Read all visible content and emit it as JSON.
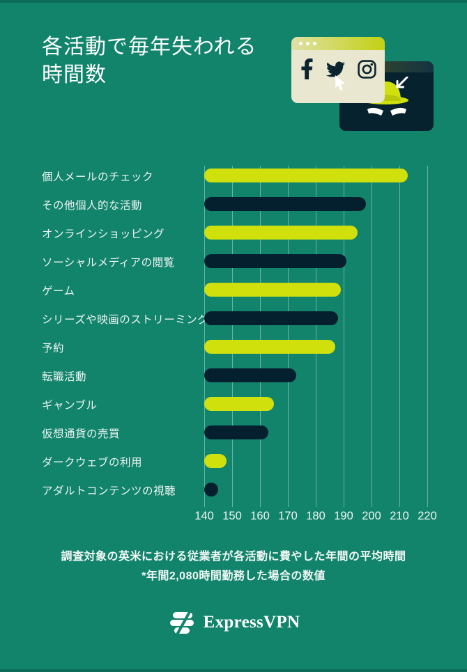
{
  "header": {
    "title_line1": "各活動で毎年失われる",
    "title_line2": "時間数"
  },
  "illustration": {
    "front_window_icons": [
      "facebook-icon",
      "twitter-icon",
      "instagram-icon"
    ],
    "back_window_icons": [
      "spy-hat-icon",
      "angry-eyes-icon",
      "arrow-cursor-icon"
    ],
    "cursor_icon": "mouse-pointer-icon"
  },
  "chart_data": {
    "type": "bar",
    "orientation": "horizontal",
    "title": "各活動で毎年失われる時間数",
    "categories": [
      "個人メールのチェック",
      "その他個人的な活動",
      "オンラインショッピング",
      "ソーシャルメディアの閲覧",
      "ゲーム",
      "シリーズや映画のストリーミング",
      "予約",
      "転職活動",
      "ギャンブル",
      "仮想通貨の売買",
      "ダークウェブの利用",
      "アダルトコンテンツの視聴"
    ],
    "values": [
      213,
      198,
      195,
      191,
      189,
      188,
      187,
      173,
      165,
      163,
      148,
      145
    ],
    "unit": "時間",
    "x_ticks": [
      140,
      150,
      160,
      170,
      180,
      190,
      200,
      210,
      220
    ],
    "xlim": [
      140,
      222
    ],
    "grid": true,
    "legend": "none",
    "series_colors": [
      "#cfe00d",
      "#04202e"
    ]
  },
  "footnote": {
    "line1": "調査対象の英米における従業者が各活動に費やした年間の平均時間",
    "line2": "*年間2,080時間勤務した場合の数値"
  },
  "footer": {
    "brand": "ExpressVPN"
  },
  "colors": {
    "background": "#12846c",
    "edge_strip": "#0d6d58",
    "bar_yellow": "#cfe00d",
    "bar_navy": "#04202e",
    "window_cream": "#eae7d0",
    "window_navy": "#06222f",
    "titlebar_yellow": "#c3d112",
    "text": "#eef5f2"
  }
}
